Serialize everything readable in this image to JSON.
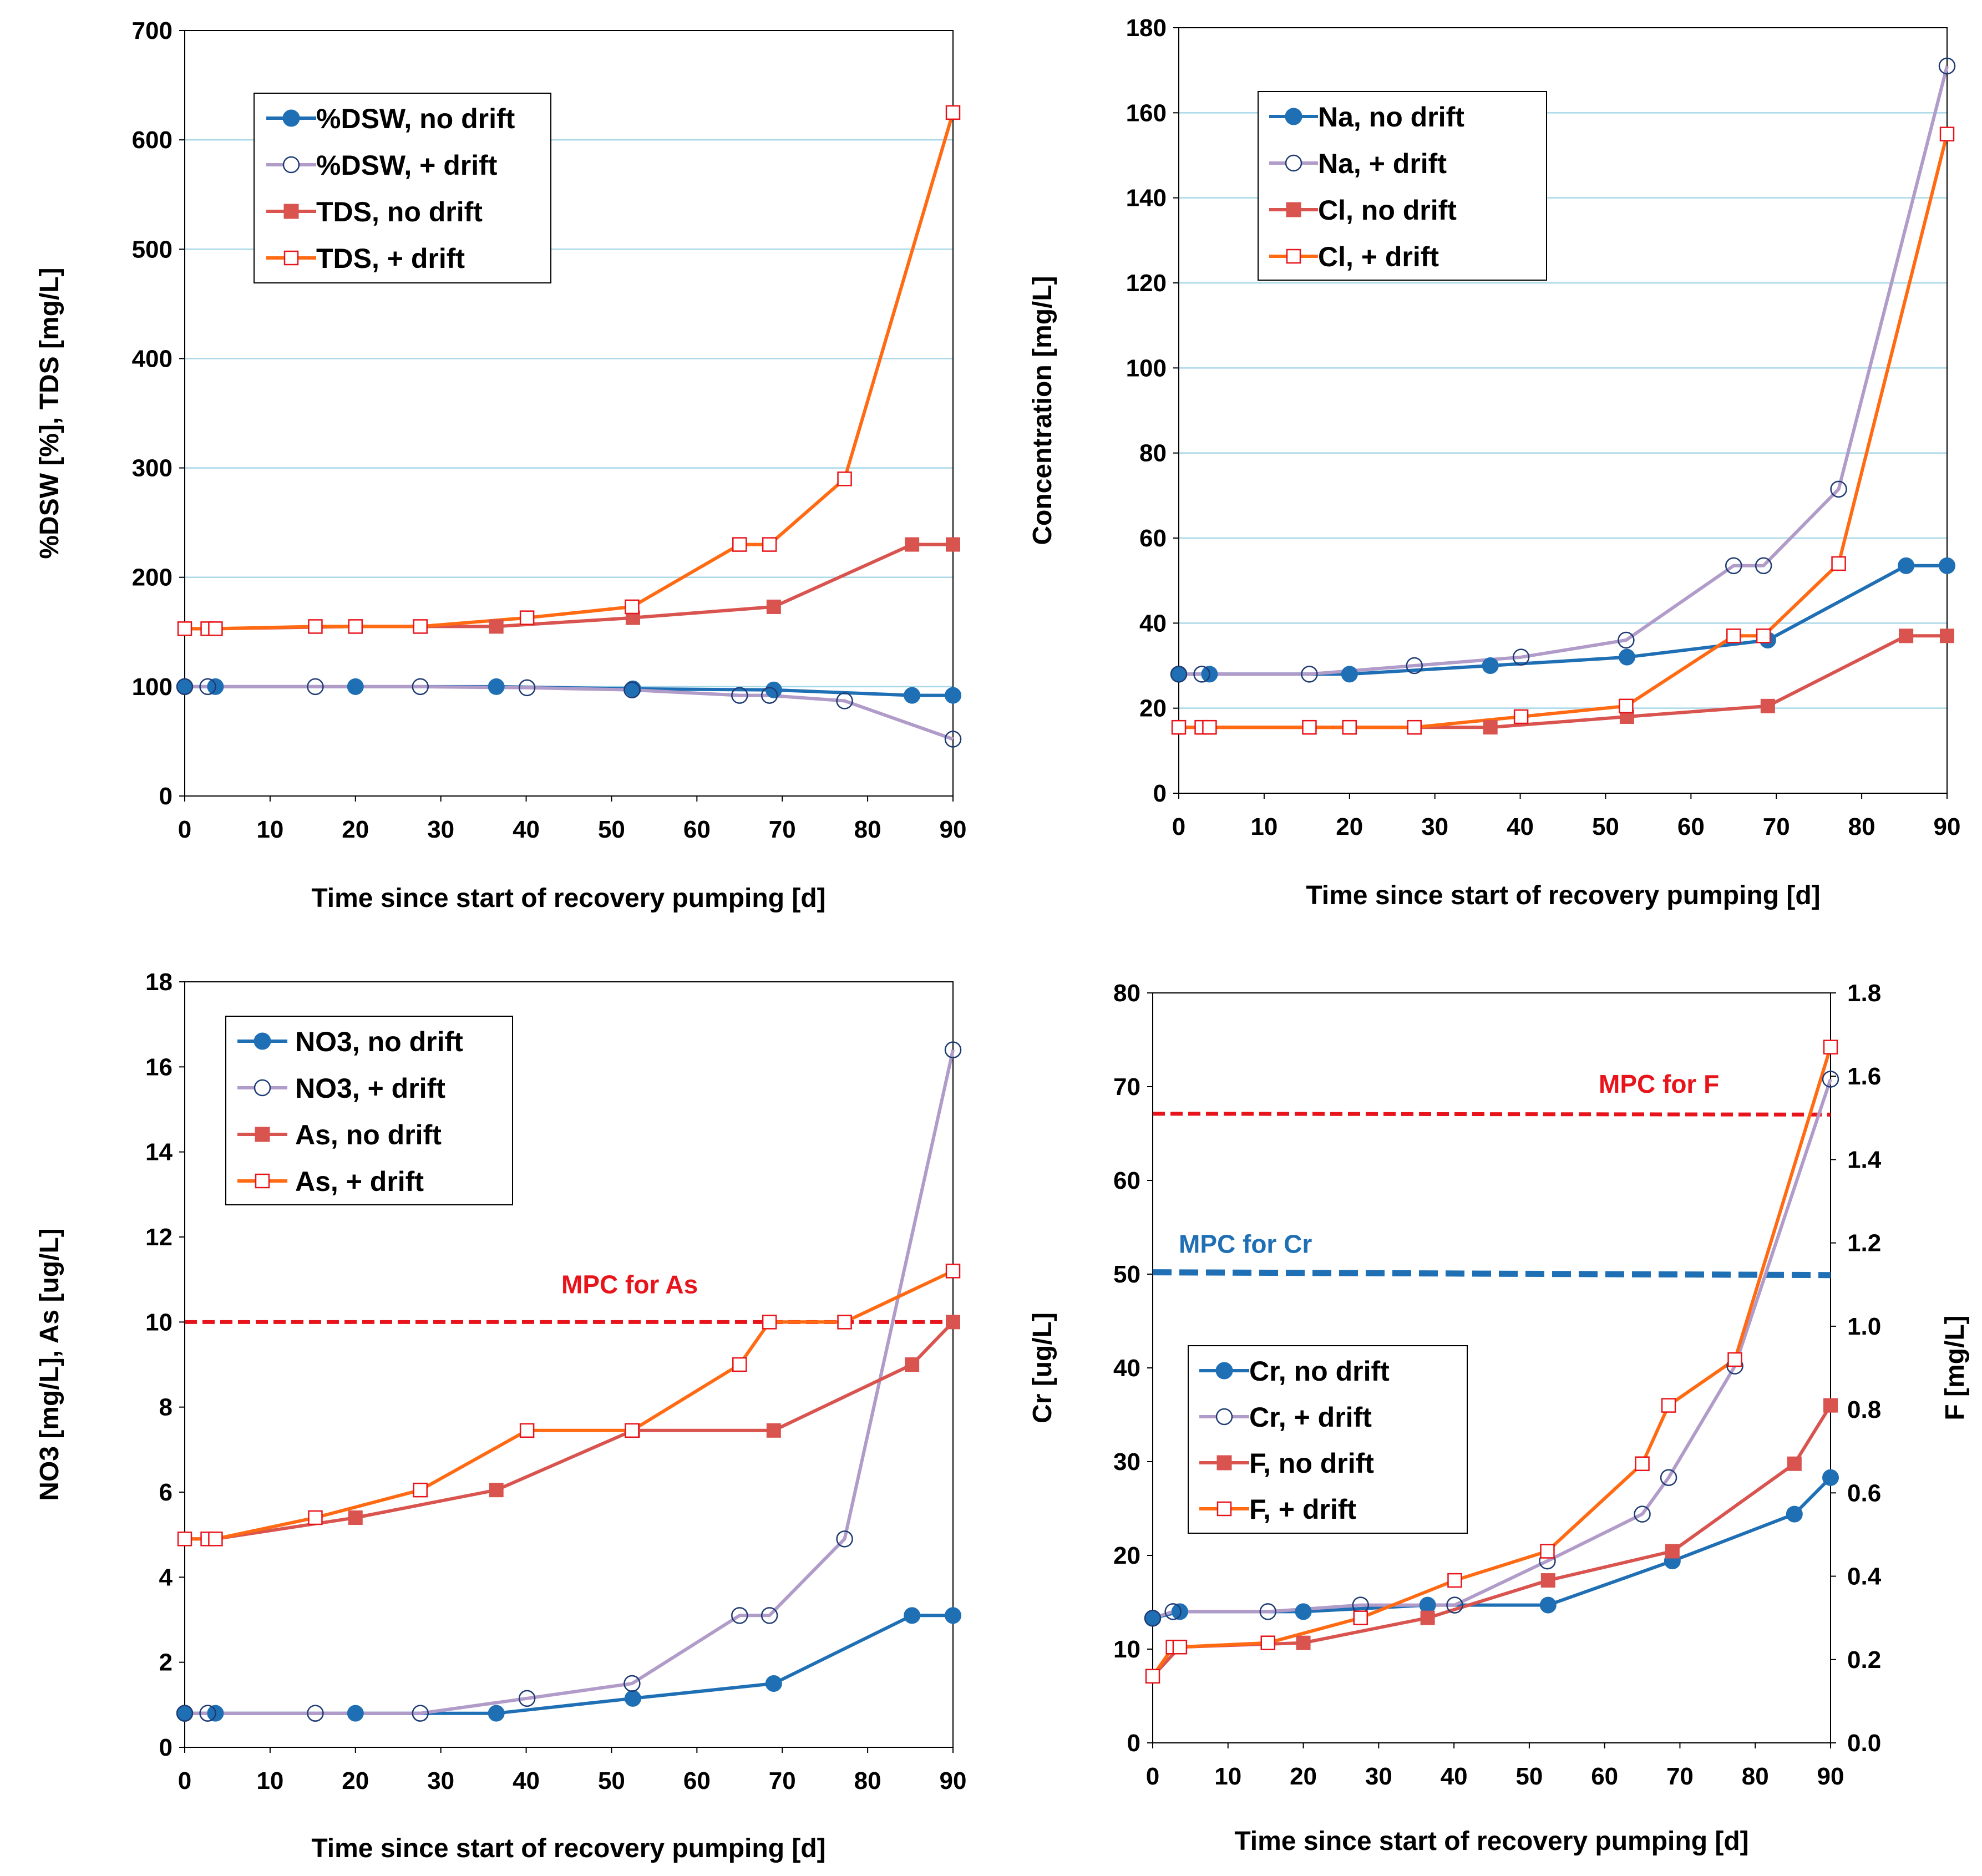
{
  "colors": {
    "blue": "#1f6fb5",
    "purple": "#b09bc9",
    "red": "#d9534f",
    "orange": "#ff6a13",
    "gridline": "#a9d8e8",
    "mpc_red": "#e8141b",
    "mpc_blue": "#1f6fb5"
  },
  "chart_data": [
    {
      "type": "line",
      "id": "dsw-tds",
      "xlabel": "Time since start of recovery pumping  [d]",
      "ylabel": "%DSW  [%], TDS  [mg/L]",
      "xlim": [
        0,
        90
      ],
      "ylim": [
        0,
        700
      ],
      "xticks": [
        "0",
        "10",
        "20",
        "30",
        "40",
        "50",
        "60",
        "70",
        "80",
        "90"
      ],
      "yticks": [
        "0",
        "100",
        "200",
        "300",
        "400",
        "500",
        "600",
        "700"
      ],
      "grid": true,
      "legend": "top-left",
      "series": [
        {
          "name": "%DSW, no drift",
          "color": "blue",
          "marker": "filled-circle",
          "x": [
            0,
            3.6,
            20,
            36.5,
            52.5,
            69,
            85.2,
            90
          ],
          "y": [
            100,
            100,
            100,
            100,
            98,
            97,
            92,
            92
          ]
        },
        {
          "name": "%DSW, + drift",
          "color": "purple",
          "marker": "open-circle",
          "x": [
            0,
            2.7,
            15.3,
            27.6,
            40.1,
            52.4,
            65,
            68.5,
            77.3,
            90
          ],
          "y": [
            100,
            100,
            100,
            100,
            99,
            97,
            92,
            92,
            87,
            52
          ]
        },
        {
          "name": "TDS, no drift",
          "color": "red",
          "marker": "filled-square",
          "x": [
            0,
            3.6,
            20,
            36.5,
            52.5,
            69,
            85.2,
            90
          ],
          "y": [
            153,
            153,
            155,
            155,
            163,
            173,
            230,
            230
          ]
        },
        {
          "name": "TDS, + drift",
          "color": "orange",
          "marker": "open-square",
          "x": [
            0,
            2.7,
            3.6,
            15.3,
            20,
            27.6,
            40.1,
            52.4,
            65,
            68.5,
            77.3,
            90
          ],
          "y": [
            153,
            153,
            153,
            155,
            155,
            155,
            163,
            173,
            230,
            230,
            290,
            625
          ]
        }
      ],
      "annotations": []
    },
    {
      "type": "line",
      "id": "na-cl",
      "xlabel": "Time since start of recovery pumping  [d]",
      "ylabel": "Concentration  [mg/L]",
      "xlim": [
        0,
        90
      ],
      "ylim": [
        0,
        180
      ],
      "xticks": [
        "0",
        "10",
        "20",
        "30",
        "40",
        "50",
        "60",
        "70",
        "80",
        "90"
      ],
      "yticks": [
        "0",
        "20",
        "40",
        "60",
        "80",
        "100",
        "120",
        "140",
        "160",
        "180"
      ],
      "grid": true,
      "legend": "top-left",
      "series": [
        {
          "name": "Na, no drift",
          "color": "blue",
          "marker": "filled-circle",
          "x": [
            0,
            3.6,
            20,
            36.5,
            52.5,
            69,
            85.2,
            90
          ],
          "y": [
            28,
            28,
            28,
            30,
            32,
            36,
            53.5,
            53.5
          ]
        },
        {
          "name": "Na, + drift",
          "color": "purple",
          "marker": "open-circle",
          "x": [
            0,
            2.7,
            15.3,
            27.6,
            40.1,
            52.4,
            65,
            68.5,
            77.3,
            90
          ],
          "y": [
            28,
            28,
            28,
            30,
            32,
            36,
            53.5,
            53.5,
            71.5,
            171
          ]
        },
        {
          "name": "Cl, no drift",
          "color": "red",
          "marker": "filled-square",
          "x": [
            0,
            3.6,
            20,
            36.5,
            52.5,
            69,
            85.2,
            90
          ],
          "y": [
            15.5,
            15.5,
            15.5,
            15.5,
            18,
            20.5,
            37,
            37
          ]
        },
        {
          "name": "Cl, + drift",
          "color": "orange",
          "marker": "open-square",
          "x": [
            0,
            2.7,
            3.6,
            15.3,
            20,
            27.6,
            40.1,
            52.4,
            65,
            68.5,
            77.3,
            90
          ],
          "y": [
            15.5,
            15.5,
            15.5,
            15.5,
            15.5,
            15.5,
            18,
            20.5,
            37,
            37,
            54,
            155
          ]
        }
      ],
      "annotations": []
    },
    {
      "type": "line",
      "id": "no3-as",
      "xlabel": "Time since start of recovery pumping  [d]",
      "ylabel": "NO3  [mg/L],   As  [ug/L]",
      "xlim": [
        0,
        90
      ],
      "ylim": [
        0,
        18
      ],
      "xticks": [
        "0",
        "10",
        "20",
        "30",
        "40",
        "50",
        "60",
        "70",
        "80",
        "90"
      ],
      "yticks": [
        "0",
        "2",
        "4",
        "6",
        "8",
        "10",
        "12",
        "14",
        "16",
        "18"
      ],
      "grid": false,
      "legend": "top-left",
      "series": [
        {
          "name": "NO3, no drift",
          "color": "blue",
          "marker": "filled-circle",
          "x": [
            0,
            3.6,
            20,
            36.5,
            52.5,
            69,
            85.2,
            90
          ],
          "y": [
            0.8,
            0.8,
            0.8,
            0.8,
            1.15,
            1.5,
            3.1,
            3.1
          ]
        },
        {
          "name": "NO3, + drift",
          "color": "purple",
          "marker": "open-circle",
          "x": [
            0,
            2.7,
            15.3,
            27.6,
            40.1,
            52.4,
            65,
            68.5,
            77.3,
            90
          ],
          "y": [
            0.8,
            0.8,
            0.8,
            0.8,
            1.15,
            1.5,
            3.1,
            3.1,
            4.9,
            16.4
          ]
        },
        {
          "name": "As, no drift",
          "color": "red",
          "marker": "filled-square",
          "x": [
            0,
            3.6,
            20,
            36.5,
            52.5,
            69,
            85.2,
            90
          ],
          "y": [
            4.9,
            4.9,
            5.4,
            6.05,
            7.45,
            7.45,
            9.0,
            10.0
          ]
        },
        {
          "name": "As, + drift",
          "color": "orange",
          "marker": "open-square",
          "x": [
            0,
            2.7,
            3.6,
            15.3,
            27.6,
            40.1,
            52.4,
            65,
            68.5,
            77.3,
            90
          ],
          "y": [
            4.9,
            4.9,
            4.9,
            5.4,
            6.05,
            7.45,
            7.45,
            9.0,
            10.0,
            10.0,
            11.2
          ]
        }
      ],
      "annotations": [
        {
          "text": "MPC for As",
          "axis": "left",
          "y": 10,
          "color": "mpc_red"
        }
      ]
    },
    {
      "type": "line",
      "id": "cr-f",
      "xlabel": "Time since start of recovery pumping  [d]",
      "ylabel": "Cr  [ug/L]",
      "y2label": "F  [mg/L]",
      "xlim": [
        0,
        90
      ],
      "ylim": [
        0,
        80
      ],
      "y2lim": [
        0,
        1.8
      ],
      "xticks": [
        "0",
        "10",
        "20",
        "30",
        "40",
        "50",
        "60",
        "70",
        "80",
        "90"
      ],
      "yticks": [
        "0",
        "10",
        "20",
        "30",
        "40",
        "50",
        "60",
        "70",
        "80"
      ],
      "y2ticks": [
        "0.0",
        "0.2",
        "0.4",
        "0.6",
        "0.8",
        "1.0",
        "1.2",
        "1.4",
        "1.6",
        "1.8"
      ],
      "grid": false,
      "legend": "bottom-left",
      "series": [
        {
          "name": "Cr, no drift",
          "color": "blue",
          "marker": "filled-circle",
          "axis": "left",
          "x": [
            0,
            3.6,
            20,
            36.5,
            52.5,
            69,
            85.2,
            90
          ],
          "y": [
            13.3,
            14,
            14,
            14.7,
            14.7,
            19.4,
            24.4,
            28.3
          ]
        },
        {
          "name": "Cr, + drift",
          "color": "purple",
          "marker": "open-circle",
          "axis": "left",
          "x": [
            0,
            2.7,
            15.3,
            27.6,
            40.1,
            52.4,
            65,
            68.5,
            77.3,
            90
          ],
          "y": [
            13.3,
            14,
            14,
            14.7,
            14.7,
            19.4,
            24.4,
            28.3,
            40.2,
            70.8
          ]
        },
        {
          "name": "F, no drift",
          "color": "red",
          "marker": "filled-square",
          "axis": "right",
          "x": [
            0,
            3.6,
            20,
            36.5,
            52.5,
            69,
            85.2,
            90
          ],
          "y": [
            0.16,
            0.23,
            0.24,
            0.3,
            0.39,
            0.46,
            0.67,
            0.81
          ]
        },
        {
          "name": "F, + drift",
          "color": "orange",
          "marker": "open-square",
          "axis": "right",
          "x": [
            0,
            2.7,
            3.6,
            15.3,
            27.6,
            40.1,
            52.4,
            65,
            68.5,
            77.3,
            90
          ],
          "y": [
            0.16,
            0.23,
            0.23,
            0.24,
            0.3,
            0.39,
            0.46,
            0.67,
            0.81,
            0.92,
            1.67
          ]
        }
      ],
      "annotations": [
        {
          "text": "MPC for F",
          "axis": "right",
          "y": 1.51,
          "y_end": 1.508,
          "color": "mpc_red"
        },
        {
          "text": "MPC for Cr",
          "axis": "left",
          "y": 50.2,
          "y_end": 49.9,
          "color": "mpc_blue"
        }
      ]
    }
  ]
}
